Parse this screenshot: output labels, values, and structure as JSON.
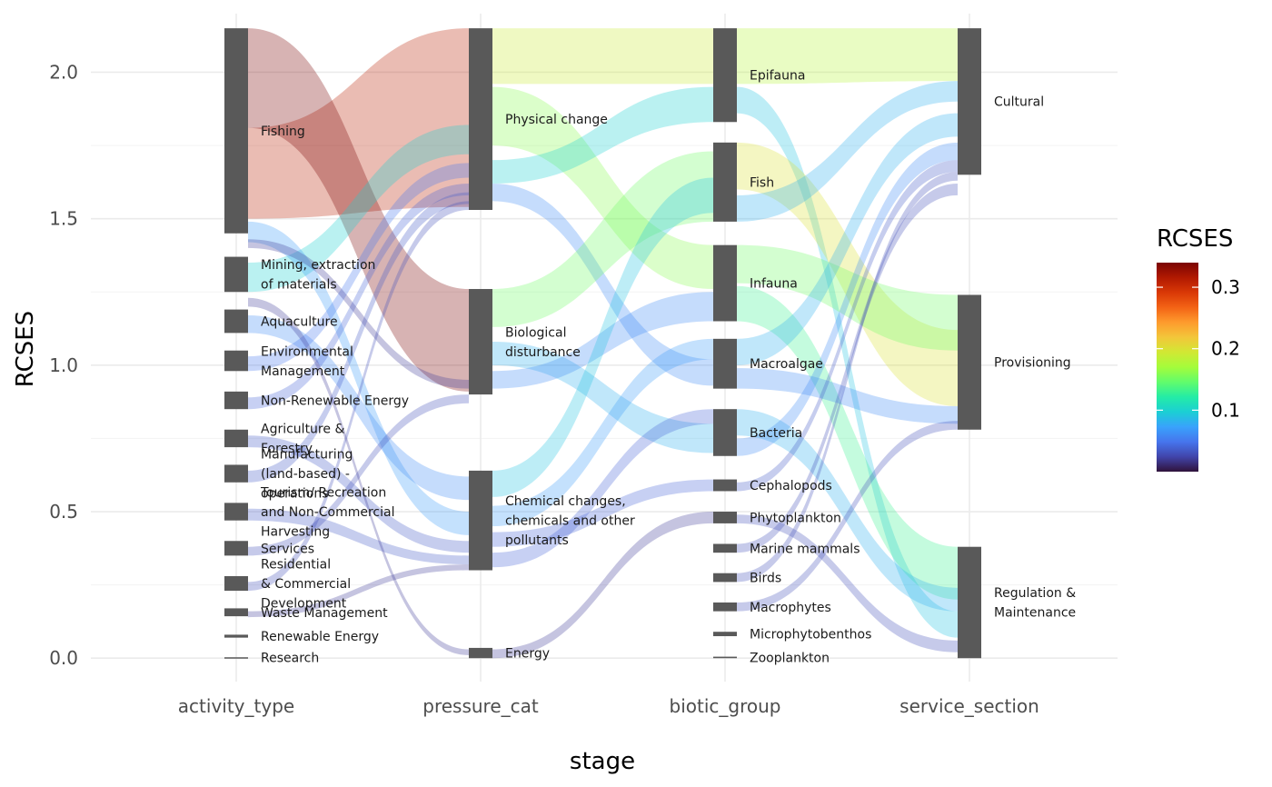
{
  "chart_data": {
    "type": "alluvial",
    "title": "",
    "xlabel": "stage",
    "ylabel": "RCSES",
    "ylim": [
      -0.08,
      2.2
    ],
    "yticks": [
      0.0,
      0.5,
      1.0,
      1.5,
      2.0
    ],
    "ytick_labels": [
      "0.0",
      "0.5",
      "1.0",
      "1.5",
      "2.0"
    ],
    "stages": [
      "activity_type",
      "pressure_cat",
      "biotic_group",
      "service_section"
    ],
    "grid": true,
    "nodes": [
      [
        {
          "label": "Fishing",
          "lo": 1.45,
          "hi": 2.15
        },
        {
          "label": "Mining, extraction\nof materials",
          "lo": 1.25,
          "hi": 1.37
        },
        {
          "label": "Aquaculture",
          "lo": 1.11,
          "hi": 1.19
        },
        {
          "label": "Environmental\nManagement",
          "lo": 0.98,
          "hi": 1.05
        },
        {
          "label": "Non-Renewable Energy",
          "lo": 0.85,
          "hi": 0.91
        },
        {
          "label": "Agriculture &\nForestry",
          "lo": 0.72,
          "hi": 0.78
        },
        {
          "label": "Manufacturing\n(land-based) -\noperations",
          "lo": 0.6,
          "hi": 0.66
        },
        {
          "label": "Tourism/ Recreation\nand Non-Commercial\nHarvesting",
          "lo": 0.47,
          "hi": 0.53
        },
        {
          "label": "Services",
          "lo": 0.35,
          "hi": 0.4
        },
        {
          "label": "Residential\n& Commercial\nDevelopment",
          "lo": 0.23,
          "hi": 0.28
        },
        {
          "label": "Waste Management",
          "lo": 0.143,
          "hi": 0.17
        },
        {
          "label": "Renewable Energy",
          "lo": 0.07,
          "hi": 0.08
        },
        {
          "label": "Research",
          "lo": 0.0,
          "hi": 0.003
        }
      ],
      [
        {
          "label": "Physical change",
          "lo": 1.53,
          "hi": 2.15
        },
        {
          "label": "Biological\ndisturbance",
          "lo": 0.9,
          "hi": 1.26
        },
        {
          "label": "Chemical changes,\nchemicals and other\npollutants",
          "lo": 0.3,
          "hi": 0.64
        },
        {
          "label": "Energy",
          "lo": 0.0,
          "hi": 0.035
        }
      ],
      [
        {
          "label": "Epifauna",
          "lo": 1.83,
          "hi": 2.15
        },
        {
          "label": "Fish",
          "lo": 1.49,
          "hi": 1.76
        },
        {
          "label": "Infauna",
          "lo": 1.15,
          "hi": 1.41
        },
        {
          "label": "Macroalgae",
          "lo": 0.92,
          "hi": 1.09
        },
        {
          "label": "Bacteria",
          "lo": 0.69,
          "hi": 0.85
        },
        {
          "label": "Cephalopods",
          "lo": 0.57,
          "hi": 0.61
        },
        {
          "label": "Phytoplankton",
          "lo": 0.46,
          "hi": 0.5
        },
        {
          "label": "Marine mammals",
          "lo": 0.36,
          "hi": 0.39
        },
        {
          "label": "Birds",
          "lo": 0.26,
          "hi": 0.29
        },
        {
          "label": "Macrophytes",
          "lo": 0.16,
          "hi": 0.19
        },
        {
          "label": "Microphytobenthos",
          "lo": 0.075,
          "hi": 0.09
        },
        {
          "label": "Zooplankton",
          "lo": 0.0,
          "hi": 0.005
        }
      ],
      [
        {
          "label": "Cultural",
          "lo": 1.65,
          "hi": 2.15
        },
        {
          "label": "Provisioning",
          "lo": 0.78,
          "hi": 1.24
        },
        {
          "label": "Regulation &\nMaintenance",
          "lo": 0.0,
          "hi": 0.38
        }
      ]
    ],
    "flows": [
      [
        {
          "from": [
            1.5,
            1.81
          ],
          "to": [
            1.54,
            2.15
          ],
          "value": 0.31
        },
        {
          "from": [
            1.81,
            2.15
          ],
          "to": [
            0.91,
            1.26
          ],
          "value": 0.34
        },
        {
          "from": [
            1.25,
            1.35
          ],
          "to": [
            1.72,
            1.82
          ],
          "value": 0.1
        },
        {
          "from": [
            1.42,
            1.49
          ],
          "to": [
            0.42,
            0.5
          ],
          "value": 0.07
        },
        {
          "from": [
            1.11,
            1.17
          ],
          "to": [
            0.54,
            0.62
          ],
          "value": 0.06
        },
        {
          "from": [
            0.98,
            1.03
          ],
          "to": [
            1.64,
            1.69
          ],
          "value": 0.05
        },
        {
          "from": [
            0.85,
            0.89
          ],
          "to": [
            1.58,
            1.62
          ],
          "value": 0.04
        },
        {
          "from": [
            0.72,
            0.76
          ],
          "to": [
            0.36,
            0.4
          ],
          "value": 0.035
        },
        {
          "from": [
            0.6,
            0.64
          ],
          "to": [
            1.55,
            1.59
          ],
          "value": 0.035
        },
        {
          "from": [
            0.47,
            0.51
          ],
          "to": [
            0.32,
            0.35
          ],
          "value": 0.035
        },
        {
          "from": [
            0.35,
            0.38
          ],
          "to": [
            0.87,
            0.9
          ],
          "value": 0.03
        },
        {
          "from": [
            0.23,
            0.26
          ],
          "to": [
            1.53,
            1.56
          ],
          "value": 0.03
        },
        {
          "from": [
            0.14,
            0.16
          ],
          "to": [
            0.3,
            0.32
          ],
          "value": 0.02
        },
        {
          "from": [
            1.2,
            1.23
          ],
          "to": [
            0.01,
            0.03
          ],
          "value": 0.02
        },
        {
          "from": [
            1.4,
            1.43
          ],
          "to": [
            0.92,
            0.95
          ],
          "value": 0.02
        }
      ],
      [
        {
          "from": [
            1.96,
            2.15
          ],
          "to": [
            1.96,
            2.15
          ],
          "value": 0.19
        },
        {
          "from": [
            1.75,
            1.95
          ],
          "to": [
            1.26,
            1.41
          ],
          "value": 0.16
        },
        {
          "from": [
            1.62,
            1.7
          ],
          "to": [
            1.83,
            1.95
          ],
          "value": 0.1
        },
        {
          "from": [
            1.56,
            1.62
          ],
          "to": [
            0.93,
            1.02
          ],
          "value": 0.06
        },
        {
          "from": [
            1.13,
            1.26
          ],
          "to": [
            1.49,
            1.73
          ],
          "value": 0.15
        },
        {
          "from": [
            1.0,
            1.08
          ],
          "to": [
            0.7,
            0.8
          ],
          "value": 0.08
        },
        {
          "from": [
            0.92,
            0.98
          ],
          "to": [
            1.15,
            1.25
          ],
          "value": 0.06
        },
        {
          "from": [
            0.55,
            0.64
          ],
          "to": [
            1.52,
            1.64
          ],
          "value": 0.09
        },
        {
          "from": [
            0.45,
            0.52
          ],
          "to": [
            1.02,
            1.09
          ],
          "value": 0.07
        },
        {
          "from": [
            0.38,
            0.43
          ],
          "to": [
            0.57,
            0.61
          ],
          "value": 0.04
        },
        {
          "from": [
            0.31,
            0.36
          ],
          "to": [
            0.8,
            0.85
          ],
          "value": 0.04
        },
        {
          "from": [
            0.0,
            0.03
          ],
          "to": [
            0.46,
            0.5
          ],
          "value": 0.02
        }
      ],
      [
        {
          "from": [
            1.96,
            2.15
          ],
          "to": [
            1.97,
            2.15
          ],
          "value": 0.18
        },
        {
          "from": [
            1.86,
            1.95
          ],
          "to": [
            0.07,
            0.16
          ],
          "value": 0.09
        },
        {
          "from": [
            1.6,
            1.76
          ],
          "to": [
            0.86,
            1.12
          ],
          "value": 0.2
        },
        {
          "from": [
            1.49,
            1.58
          ],
          "to": [
            1.9,
            1.97
          ],
          "value": 0.08
        },
        {
          "from": [
            1.28,
            1.41
          ],
          "to": [
            1.05,
            1.24
          ],
          "value": 0.15
        },
        {
          "from": [
            1.15,
            1.27
          ],
          "to": [
            0.2,
            0.38
          ],
          "value": 0.13
        },
        {
          "from": [
            1.0,
            1.09
          ],
          "to": [
            1.78,
            1.86
          ],
          "value": 0.08
        },
        {
          "from": [
            0.92,
            0.99
          ],
          "to": [
            0.8,
            0.86
          ],
          "value": 0.06
        },
        {
          "from": [
            0.76,
            0.85
          ],
          "to": [
            0.16,
            0.24
          ],
          "value": 0.08
        },
        {
          "from": [
            0.69,
            0.75
          ],
          "to": [
            1.7,
            1.76
          ],
          "value": 0.06
        },
        {
          "from": [
            0.57,
            0.6
          ],
          "to": [
            1.66,
            1.7
          ],
          "value": 0.035
        },
        {
          "from": [
            0.46,
            0.49
          ],
          "to": [
            0.02,
            0.06
          ],
          "value": 0.03
        },
        {
          "from": [
            0.36,
            0.39
          ],
          "to": [
            1.58,
            1.62
          ],
          "value": 0.03
        },
        {
          "from": [
            0.26,
            0.29
          ],
          "to": [
            1.63,
            1.66
          ],
          "value": 0.03
        },
        {
          "from": [
            0.16,
            0.19
          ],
          "to": [
            0.78,
            0.81
          ],
          "value": 0.03
        }
      ]
    ],
    "legend": {
      "title": "RCSES",
      "placement": "right",
      "ticks": [
        0.1,
        0.2,
        0.3
      ],
      "tick_labels": [
        "0.1",
        "0.2",
        "0.3"
      ],
      "range": [
        0.0,
        0.34
      ],
      "colormap": [
        "#30123b",
        "#4145ab",
        "#4675ed",
        "#39a2fc",
        "#1bcfd4",
        "#24eca6",
        "#61fc6c",
        "#a4fc3b",
        "#d1e834",
        "#f3c63a",
        "#fe9b2d",
        "#f36315",
        "#d93806",
        "#b11901",
        "#7a0403"
      ]
    }
  }
}
